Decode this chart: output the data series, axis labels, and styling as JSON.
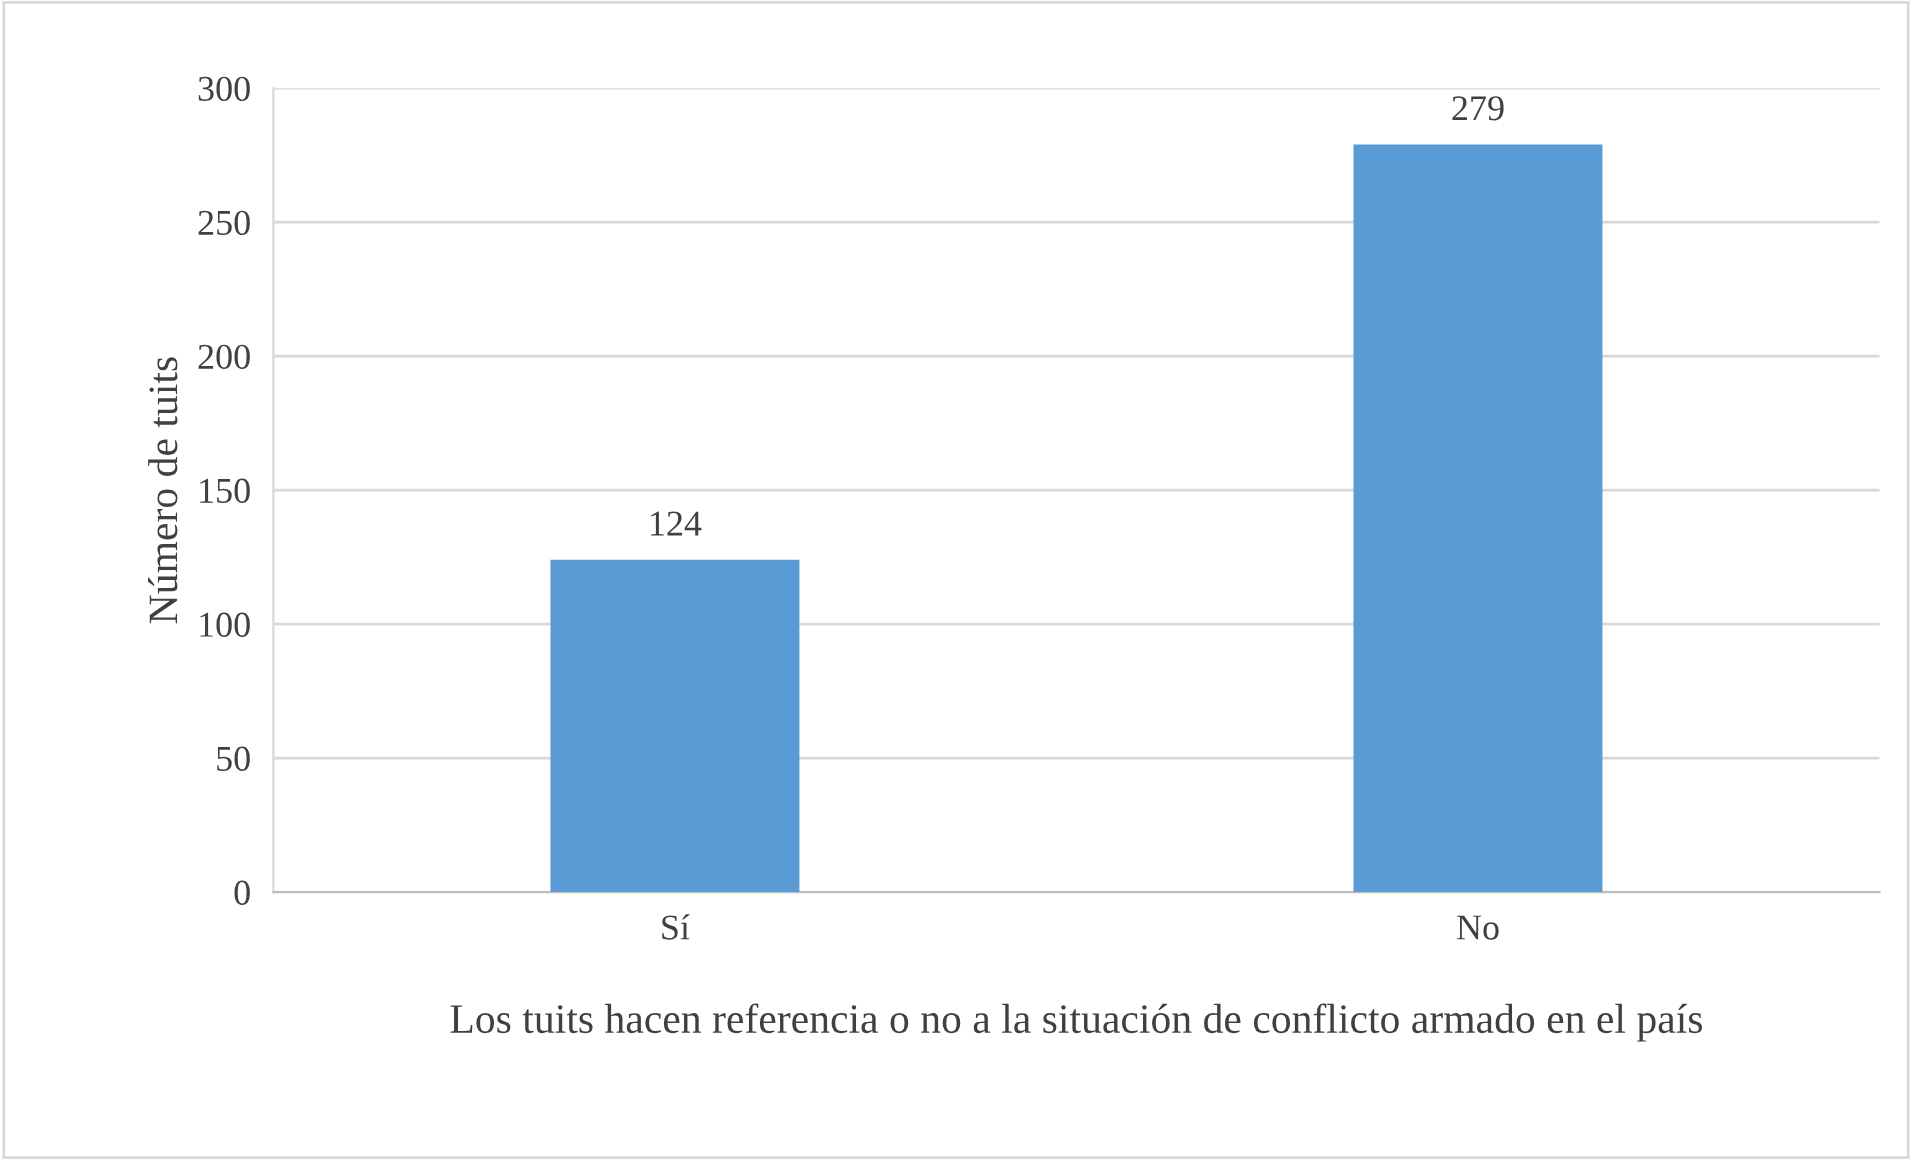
{
  "chart_data": {
    "type": "bar",
    "categories": [
      "Sí",
      "No"
    ],
    "values": [
      124,
      279
    ],
    "color": "#5b9bd5",
    "xlabel": "Los tuits hacen referencia o no a la situación de conflicto armado en el país",
    "ylabel": "Número de tuits",
    "ylim": [
      0,
      300
    ],
    "yticks": [
      0,
      50,
      100,
      150,
      200,
      250,
      300
    ],
    "grid": "y",
    "data_labels": true
  }
}
